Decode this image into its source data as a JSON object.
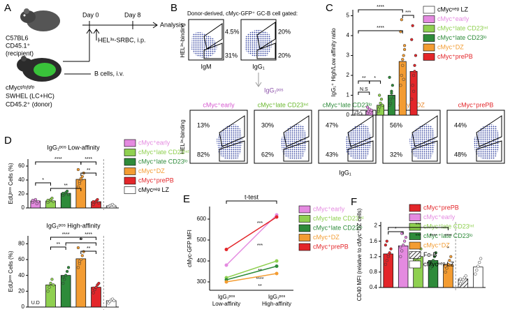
{
  "panel_labels": [
    "A",
    "B",
    "C",
    "D",
    "E",
    "F"
  ],
  "schematic": {
    "recipient": [
      "C57BL6",
      "CD45.1⁺",
      "(recipient)"
    ],
    "day0": "Day 0",
    "day8": "Day 8",
    "analysis": "Analysis",
    "immunization": "HEL³ˣ-SRBC, i.p.",
    "transfer": "B cells, i.v.",
    "donor": [
      "cMycᵍᶠᵖ/ᵍᶠᵖ",
      "SWHEL (LC+HC)",
      "CD45.2⁺ (donor)"
    ]
  },
  "flow": {
    "title": "Donor-derived, cMyc-GFP⁺ GC-B cell gated:",
    "y_label": "HEL³ˣ-binding",
    "plots": [
      {
        "x_label": "IgM",
        "top": "4.5%",
        "bottom": "31%"
      },
      {
        "x_label": "IgG₁",
        "top": "20%",
        "bottom": "20%"
      }
    ],
    "gate": "IgG₁ᵖᵒˢ"
  },
  "flow_grid": {
    "y_label": "HEL³ˣ-binding",
    "x_label": "IgG₁",
    "panels": [
      {
        "title": "cMyc⁺early",
        "color": "#d65ad0",
        "top": "13%",
        "bottom": "82%"
      },
      {
        "title": "cMyc⁺late CD23ⁱⁿᵗ",
        "color": "#6ab82e",
        "top": "30%",
        "bottom": "62%"
      },
      {
        "title": "cMyc⁺late CD23ˡᵒ",
        "color": "#2e8b3a",
        "top": "47%",
        "bottom": "43%"
      },
      {
        "title": "cMyc⁺DZ",
        "color": "#e8862a",
        "top": "56%",
        "bottom": "32%"
      },
      {
        "title": "cMyc⁺prePB",
        "color": "#e3262a",
        "top": "44%",
        "bottom": "48%"
      }
    ]
  },
  "chart_data": [
    {
      "type": "dotbar",
      "y_label": "IgG₁⁺ High/Low affinity ratio",
      "categories": [
        "cMycⁿᵉᵍ LZ",
        "cMyc⁺early",
        "cMyc⁺late CD23ⁱⁿᵗ",
        "cMyc⁺late CD23ˡᵒ",
        "cMyc⁺DZ",
        "cMyc⁺prePB"
      ],
      "colors": [
        "#ffffff",
        "#e48ae0",
        "#8fd050",
        "#2e8b3a",
        "#f39c32",
        "#e3262a"
      ],
      "values": [
        0.1,
        0.2,
        0.5,
        1.0,
        2.7,
        2.2
      ],
      "points": [
        [
          0.05,
          0.1,
          0.15,
          0.2,
          0.08,
          0.12
        ],
        [
          0.1,
          0.2,
          0.3,
          0.15,
          0.25,
          0.4
        ],
        [
          0.2,
          0.4,
          0.6,
          0.8,
          0.5,
          0.3,
          1.0
        ],
        [
          0.5,
          0.8,
          1.2,
          1.5,
          0.9,
          1.9,
          0.6,
          1.1
        ],
        [
          1.5,
          2.0,
          2.5,
          3.0,
          3.5,
          4.2,
          4.8,
          2.8,
          1.8,
          3.3
        ],
        [
          0.8,
          1.5,
          2.0,
          2.5,
          3.0,
          3.8,
          4.5,
          1.2,
          2.2
        ]
      ],
      "ylim": [
        0,
        5.3
      ],
      "yticks": [
        0,
        1,
        2,
        3,
        4,
        5
      ],
      "annotations": [
        "****",
        "***",
        "****",
        "**",
        "*",
        "N.S"
      ]
    },
    {
      "type": "dotbar",
      "title": "IgG₁ᵖᵒˢ Low-affinity",
      "y_label": "EdUᵖᵒˢ Cells (%)",
      "categories": [
        "cMyc⁺early",
        "cMyc⁺late CD23ⁱⁿᵗ",
        "cMyc⁺late CD23ˡᵒ",
        "cMyc⁺DZ",
        "cMyc⁺prePB",
        "cMycⁿᵉᵍ LZ"
      ],
      "colors": [
        "#e48ae0",
        "#8fd050",
        "#2e8b3a",
        "#f39c32",
        "#e3262a",
        "#ffffff"
      ],
      "values": [
        10,
        10,
        21,
        41,
        9,
        3
      ],
      "points": [
        [
          8,
          10,
          12,
          6,
          9,
          11
        ],
        [
          8,
          10,
          12,
          14,
          9,
          11
        ],
        [
          18,
          20,
          22,
          24,
          19,
          21
        ],
        [
          30,
          35,
          40,
          45,
          50,
          55,
          38,
          42
        ],
        [
          5,
          8,
          10,
          12,
          7,
          9
        ],
        [
          2,
          3,
          4,
          5,
          3
        ]
      ],
      "ylim": [
        0,
        70
      ],
      "yticks": [
        0,
        20,
        40,
        60
      ],
      "annotations": [
        "****",
        "****",
        "**",
        "*",
        "**"
      ]
    },
    {
      "type": "dotbar",
      "title": "IgG₁ᵖᵒˢ High-affinity",
      "y_label": "EdUᵖᵒˢ Cells (%)",
      "ud_label": "U.D",
      "colors": [
        "#e48ae0",
        "#8fd050",
        "#2e8b3a",
        "#f39c32",
        "#e3262a",
        "#ffffff"
      ],
      "values": [
        null,
        28,
        40,
        61,
        25,
        8
      ],
      "points": [
        [],
        [
          20,
          25,
          30,
          35,
          28
        ],
        [
          30,
          35,
          40,
          45,
          50,
          38
        ],
        [
          50,
          55,
          60,
          65,
          70,
          75,
          58
        ],
        [
          18,
          22,
          25,
          28,
          30,
          24
        ],
        [
          5,
          7,
          9,
          10,
          8
        ]
      ],
      "ylim": [
        0,
        90
      ],
      "yticks": [
        0,
        20,
        40,
        60,
        80
      ],
      "annotations": [
        "****",
        "****",
        "**",
        "**",
        "**"
      ]
    },
    {
      "type": "line",
      "title": "t-test",
      "y_label": "cMyc-GFP MFI",
      "categories": [
        "IgG₁ᵖᵒˢ Low-affinity",
        "IgG₁ᵖᵒˢ High-affinity"
      ],
      "series": [
        {
          "name": "cMyc⁺early",
          "color": "#e48ae0",
          "values": [
            380,
            620
          ]
        },
        {
          "name": "cMyc⁺late CD23ⁱⁿᵗ",
          "color": "#8fd050",
          "values": [
            320,
            400
          ]
        },
        {
          "name": "cMyc⁺late CD23ˡᵒ",
          "color": "#2e8b3a",
          "values": [
            310,
            375
          ]
        },
        {
          "name": "cMyc⁺DZ",
          "color": "#f39c32",
          "values": [
            300,
            340
          ]
        },
        {
          "name": "cMyc⁺prePB",
          "color": "#e3262a",
          "values": [
            455,
            610
          ]
        }
      ],
      "ylim": [
        260,
        660
      ],
      "yticks": [
        300,
        400,
        500,
        600
      ],
      "annotations": [
        "***",
        "***",
        "**",
        "****",
        "**"
      ]
    },
    {
      "type": "dotbar",
      "y_label": "CD40 MFI (relative to cMyc⁺DZ cells)",
      "categories": [
        "cMyc⁺prePB",
        "cMyc⁺early",
        "cMyc⁺late CD23ⁱⁿᵗ",
        "cMyc⁺late CD23ˡᵒ",
        "cMyc⁺DZ",
        "Fo-B",
        "cMycⁿᵉᵍ LZ"
      ],
      "colors": [
        "#e3262a",
        "#e48ae0",
        "#8fd050",
        "#2e8b3a",
        "#f39c32",
        "hatch",
        "#ffffff"
      ],
      "values": [
        1.27,
        1.48,
        1.2,
        1.1,
        1.0,
        0.62,
        0.93
      ],
      "points": [
        [
          1.0,
          1.1,
          1.2,
          1.3,
          1.4,
          1.5,
          1.6,
          1.25
        ],
        [
          1.2,
          1.35,
          1.5,
          1.6,
          1.7,
          1.45,
          1.8
        ],
        [
          0.95,
          1.1,
          1.2,
          1.3,
          1.4,
          1.15
        ],
        [
          0.9,
          1.0,
          1.1,
          1.2,
          1.3,
          1.05
        ],
        [
          0.8,
          0.9,
          1.0,
          1.1,
          1.2,
          0.95
        ],
        [
          0.5,
          0.55,
          0.6,
          0.65,
          0.7,
          0.62
        ],
        [
          0.75,
          0.85,
          0.95,
          1.05,
          1.15
        ]
      ],
      "ylim": [
        0.4,
        2.1
      ],
      "yticks": [
        0.4,
        0.8,
        1.2,
        1.6,
        2.0
      ],
      "annotations": [
        "***",
        "*",
        "***",
        "****",
        "****",
        "*"
      ]
    }
  ]
}
